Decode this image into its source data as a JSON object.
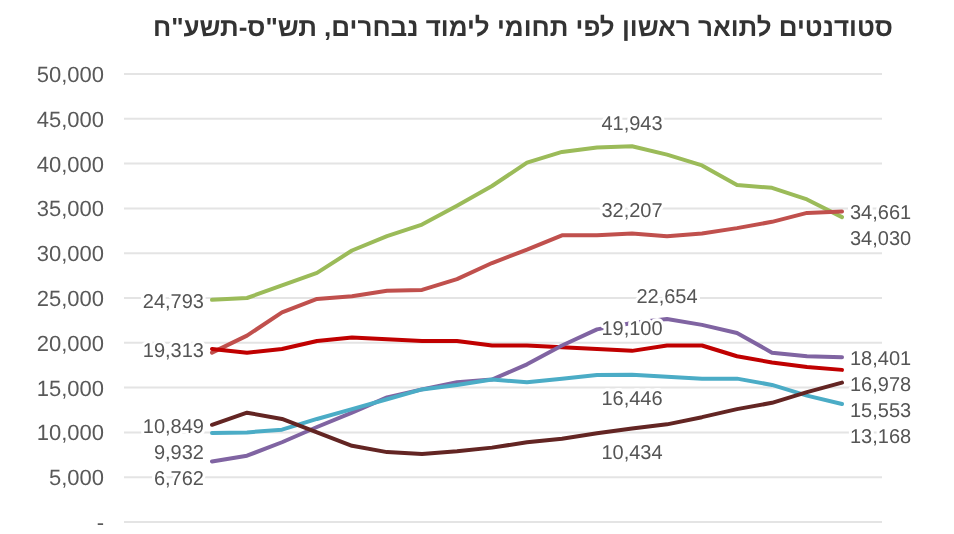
{
  "chart_data": {
    "type": "line",
    "title": "סטודנטים לתואר ראשון לפי תחומי לימוד נבחרים, תש\"ס-תשע\"ח",
    "categories": [
      null,
      null,
      null,
      null,
      null,
      null,
      null,
      null,
      null,
      null,
      null,
      null,
      null,
      null,
      null,
      null,
      null,
      null,
      null
    ],
    "ylim": [
      0,
      50000
    ],
    "yticks": [
      {
        "value": 0,
        "label": "-"
      },
      {
        "value": 5000,
        "label": "5,000"
      },
      {
        "value": 10000,
        "label": "10,000"
      },
      {
        "value": 15000,
        "label": "15,000"
      },
      {
        "value": 20000,
        "label": "20,000"
      },
      {
        "value": 25000,
        "label": "25,000"
      },
      {
        "value": 30000,
        "label": "30,000"
      },
      {
        "value": 35000,
        "label": "35,000"
      },
      {
        "value": 40000,
        "label": "40,000"
      },
      {
        "value": 45000,
        "label": "45,000"
      },
      {
        "value": 50000,
        "label": "50,000"
      }
    ],
    "grid": "y",
    "legend": false,
    "marker": "none",
    "line_style": "solid",
    "series": [
      {
        "color": "#9bbb59",
        "values": [
          24793,
          25000,
          26400,
          27800,
          30300,
          31900,
          33200,
          35300,
          37500,
          40100,
          41300,
          41800,
          41943,
          41000,
          39800,
          37600,
          37300,
          36000,
          34030
        ],
        "value_labels": [
          "24,793",
          null,
          null,
          null,
          null,
          null,
          null,
          null,
          null,
          null,
          null,
          null,
          "41,943",
          null,
          null,
          null,
          null,
          null,
          "34,030"
        ]
      },
      {
        "color": "#c0504d",
        "values": [
          18900,
          20800,
          23400,
          24900,
          25200,
          25800,
          25900,
          27100,
          28900,
          30400,
          32000,
          32000,
          32207,
          31900,
          32200,
          32800,
          33500,
          34500,
          34661
        ],
        "value_labels": [
          null,
          null,
          null,
          null,
          null,
          null,
          null,
          null,
          null,
          null,
          null,
          null,
          "32,207",
          null,
          null,
          null,
          null,
          null,
          "34,661"
        ]
      },
      {
        "color": "#c00000",
        "values": [
          19313,
          18900,
          19300,
          20200,
          20600,
          20400,
          20200,
          20200,
          19700,
          19700,
          19500,
          19300,
          19100,
          19700,
          19700,
          18500,
          17800,
          17300,
          16978
        ],
        "value_labels": [
          "19,313",
          null,
          null,
          null,
          null,
          null,
          null,
          null,
          null,
          null,
          null,
          null,
          "19,100",
          null,
          null,
          null,
          null,
          null,
          "16,978"
        ]
      },
      {
        "color": "#8064a2",
        "values": [
          6762,
          7400,
          8900,
          10600,
          12200,
          13900,
          14800,
          15600,
          15900,
          17600,
          19700,
          21500,
          22200,
          22654,
          22000,
          21100,
          18900,
          18500,
          18401
        ],
        "value_labels": [
          "6,762",
          null,
          null,
          null,
          null,
          null,
          null,
          null,
          null,
          null,
          null,
          null,
          null,
          "22,654",
          null,
          null,
          null,
          null,
          "18,401"
        ]
      },
      {
        "color": "#4bacc6",
        "values": [
          9932,
          10000,
          10300,
          11500,
          12600,
          13700,
          14800,
          15300,
          15900,
          15600,
          16000,
          16400,
          16446,
          16200,
          16000,
          16000,
          15300,
          14100,
          13168
        ],
        "value_labels": [
          "9,932",
          null,
          null,
          null,
          null,
          null,
          null,
          null,
          null,
          null,
          null,
          null,
          "16,446",
          null,
          null,
          null,
          null,
          null,
          "13,168"
        ]
      },
      {
        "color": "#632523",
        "values": [
          10849,
          12200,
          11500,
          10000,
          8500,
          7800,
          7600,
          7900,
          8300,
          8900,
          9300,
          9900,
          10434,
          10900,
          11700,
          12600,
          13300,
          14500,
          15553
        ],
        "value_labels": [
          "10,849",
          null,
          null,
          null,
          null,
          null,
          null,
          null,
          null,
          null,
          null,
          null,
          "10,434",
          null,
          null,
          null,
          null,
          null,
          "15,553"
        ]
      }
    ]
  }
}
